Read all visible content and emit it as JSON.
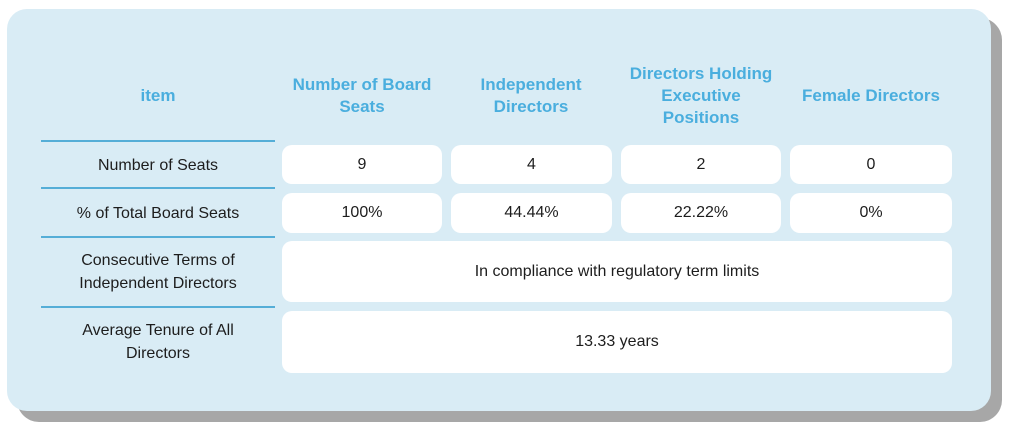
{
  "headers": {
    "item": "item",
    "board_seats": "Number of Board Seats",
    "independent": "Independent Directors",
    "executive": "Directors Holding Executive Positions",
    "female": "Female Directors"
  },
  "rows": {
    "seats": {
      "label": "Number of Seats",
      "board_seats": "9",
      "independent": "4",
      "executive": "2",
      "female": "0"
    },
    "percent": {
      "label": "% of Total Board Seats",
      "board_seats": "100%",
      "independent": "44.44%",
      "executive": "22.22%",
      "female": "0%"
    },
    "terms": {
      "label": "Consecutive Terms of Independent Directors",
      "value": "In compliance with regulatory term limits"
    },
    "tenure": {
      "label": "Average Tenure of All Directors",
      "value": "13.33 years"
    }
  },
  "colors": {
    "header_text": "#4aaede",
    "card_background": "#d9ecf5",
    "divider": "#55aed7"
  }
}
